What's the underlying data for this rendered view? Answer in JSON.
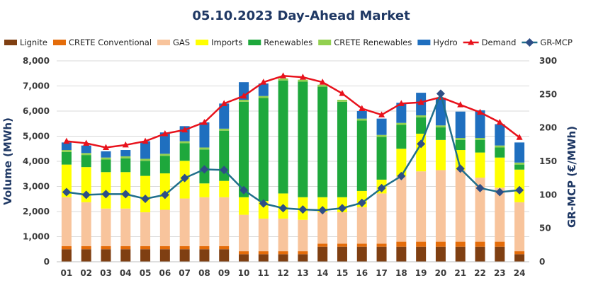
{
  "chart_data": {
    "type": "bar",
    "title": "05.10.2023  Day-Ahead Market",
    "categories": [
      "01",
      "02",
      "03",
      "04",
      "05",
      "06",
      "07",
      "08",
      "09",
      "10",
      "11",
      "12",
      "13",
      "14",
      "15",
      "16",
      "17",
      "18",
      "19",
      "20",
      "21",
      "22",
      "23",
      "24"
    ],
    "ylabel": "Volume (MWh)",
    "y2label": "GR-MCP (€/MWh)",
    "ylim": [
      0,
      8000
    ],
    "y2lim": [
      0,
      300
    ],
    "yticks": [
      "0",
      "1,000",
      "2,000",
      "3,000",
      "4,000",
      "5,000",
      "6,000",
      "7,000",
      "8,000"
    ],
    "y2ticks": [
      "0",
      "50",
      "100",
      "150",
      "200",
      "250",
      "300"
    ],
    "grid": true,
    "legend_position": "top",
    "stacked_series": [
      {
        "name": "Lignite",
        "color": "#7f3f12",
        "values": [
          500,
          500,
          500,
          500,
          500,
          500,
          500,
          500,
          500,
          300,
          300,
          300,
          300,
          600,
          600,
          600,
          600,
          600,
          600,
          600,
          600,
          600,
          600,
          300
        ]
      },
      {
        "name": "CRETE Conventional",
        "color": "#e46c0a",
        "values": [
          120,
          120,
          120,
          120,
          120,
          120,
          120,
          120,
          120,
          120,
          120,
          120,
          120,
          120,
          120,
          120,
          120,
          200,
          200,
          200,
          200,
          200,
          200,
          120
        ]
      },
      {
        "name": "GAS",
        "color": "#f8c49c",
        "values": [
          1950,
          1750,
          1500,
          1500,
          1350,
          1450,
          1900,
          1950,
          1950,
          1450,
          1300,
          1300,
          1250,
          1250,
          1250,
          1450,
          2000,
          2600,
          2800,
          2850,
          2850,
          2550,
          2150,
          1950
        ]
      },
      {
        "name": "Imports",
        "color": "#ffff00",
        "values": [
          1300,
          1400,
          1450,
          1450,
          1450,
          1450,
          1500,
          550,
          650,
          700,
          700,
          1000,
          900,
          600,
          600,
          650,
          550,
          1100,
          1500,
          1200,
          800,
          1000,
          1200,
          1300
        ]
      },
      {
        "name": "Renewables",
        "color": "#1ea83c",
        "values": [
          500,
          480,
          500,
          550,
          600,
          700,
          700,
          1350,
          2000,
          3800,
          4100,
          4500,
          4600,
          4400,
          3800,
          2800,
          1700,
          950,
          650,
          500,
          400,
          500,
          400,
          200
        ]
      },
      {
        "name": "CRETE Renewables",
        "color": "#92d050",
        "values": [
          80,
          80,
          80,
          80,
          80,
          80,
          80,
          80,
          80,
          80,
          80,
          80,
          80,
          80,
          80,
          80,
          80,
          80,
          80,
          80,
          80,
          80,
          80,
          80
        ]
      },
      {
        "name": "Hydro",
        "color": "#1f6fbf",
        "values": [
          300,
          300,
          250,
          250,
          700,
          850,
          600,
          1000,
          1000,
          700,
          500,
          0,
          0,
          0,
          0,
          300,
          650,
          800,
          900,
          1100,
          1050,
          1100,
          850,
          800
        ]
      }
    ],
    "line_series": [
      {
        "name": "Demand",
        "color": "#e8121c",
        "marker": "triangle",
        "axis": "left",
        "values": [
          4800,
          4720,
          4550,
          4650,
          4800,
          5100,
          5250,
          5550,
          6300,
          6600,
          7150,
          7400,
          7350,
          7150,
          6700,
          6100,
          5850,
          6300,
          6350,
          6550,
          6250,
          5950,
          5550,
          4950
        ]
      },
      {
        "name": "GR-MCP",
        "color": "#1f6f8b",
        "marker": "diamond",
        "axis": "right",
        "values": [
          104,
          100,
          101,
          101,
          94,
          100,
          125,
          138,
          137,
          107,
          87,
          80,
          78,
          77,
          80,
          88,
          110,
          128,
          176,
          251,
          139,
          110,
          104,
          107
        ]
      }
    ]
  }
}
